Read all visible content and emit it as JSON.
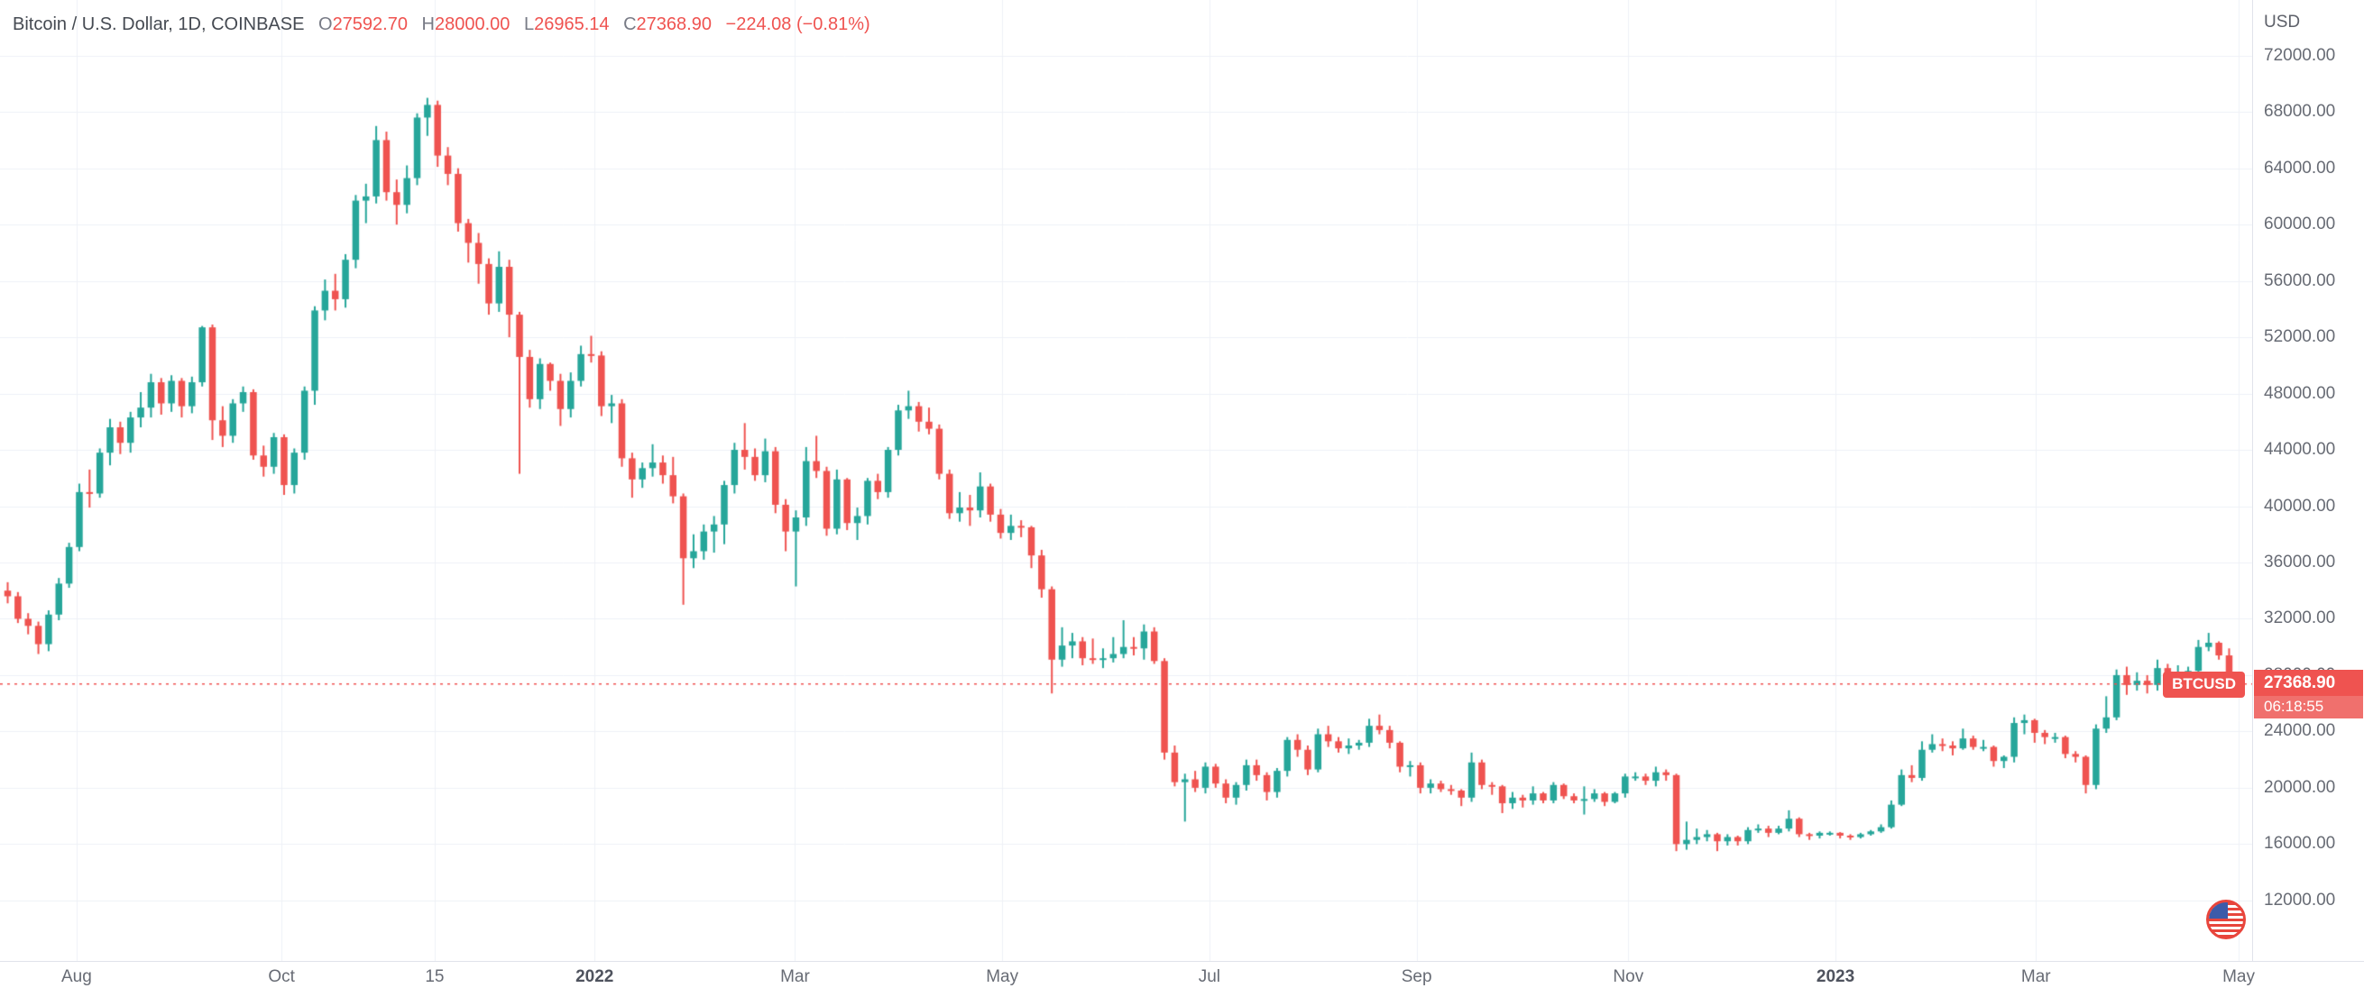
{
  "header": {
    "symbol_title": "Bitcoin / U.S. Dollar, 1D, COINBASE",
    "ohlc": {
      "o_label": "O",
      "o_value": "27592.70",
      "h_label": "H",
      "h_value": "28000.00",
      "l_label": "L",
      "l_value": "26965.14",
      "c_label": "C",
      "c_value": "27368.90",
      "change": "−224.08 (−0.81%)"
    }
  },
  "price_axis": {
    "title": "USD",
    "price_tag": {
      "price": "27368.90",
      "countdown": "06:18:55"
    }
  },
  "plot": {
    "symbol_pill": "BTCUSD"
  },
  "icons": {
    "bottom_right_event": "us-flag-icon"
  },
  "colors": {
    "up": "#26a69a",
    "down": "#ef5350",
    "accent": "#ef5350",
    "grid": "#eef1f7",
    "axis_text": "#676b74"
  },
  "chart_data": {
    "type": "candlestick",
    "title": "Bitcoin / U.S. Dollar, 1D, COINBASE",
    "symbol": "BTCUSD",
    "exchange": "COINBASE",
    "interval": "1D",
    "currency": "USD",
    "last": {
      "open": 27592.7,
      "high": 28000.0,
      "low": 26965.14,
      "close": 27368.9,
      "change": -224.08,
      "change_pct": -0.81
    },
    "y_axis": {
      "price_at_top": 75950,
      "price_at_bottom": 7700,
      "ticks": [
        72000,
        68000,
        64000,
        60000,
        56000,
        52000,
        48000,
        44000,
        40000,
        36000,
        32000,
        28000,
        24000,
        20000,
        16000,
        12000
      ]
    },
    "x_ticks": [
      {
        "label": "Aug",
        "pos": 0.034
      },
      {
        "label": "Oct",
        "pos": 0.125
      },
      {
        "label": "15",
        "pos": 0.193
      },
      {
        "label": "2022",
        "pos": 0.264,
        "year": true
      },
      {
        "label": "Mar",
        "pos": 0.353
      },
      {
        "label": "May",
        "pos": 0.445
      },
      {
        "label": "Jul",
        "pos": 0.537
      },
      {
        "label": "Sep",
        "pos": 0.629
      },
      {
        "label": "Nov",
        "pos": 0.723
      },
      {
        "label": "2023",
        "pos": 0.815,
        "year": true
      },
      {
        "label": "Mar",
        "pos": 0.904
      },
      {
        "label": "May",
        "pos": 0.994
      }
    ],
    "x_range": {
      "start": "Jul 2021",
      "end": "May 2023"
    },
    "candles": [
      [
        34000,
        34600,
        33100,
        33600
      ],
      [
        33600,
        33900,
        31700,
        32000
      ],
      [
        32000,
        32400,
        30900,
        31500
      ],
      [
        31500,
        31800,
        29500,
        30200
      ],
      [
        30200,
        32600,
        29700,
        32300
      ],
      [
        32300,
        34900,
        31900,
        34500
      ],
      [
        34500,
        37400,
        34200,
        37100
      ],
      [
        37100,
        41600,
        36800,
        41000
      ],
      [
        41000,
        42600,
        39900,
        40900
      ],
      [
        40900,
        44100,
        40600,
        43800
      ],
      [
        43800,
        46200,
        42900,
        45600
      ],
      [
        45600,
        46000,
        43700,
        44500
      ],
      [
        44500,
        46700,
        43800,
        46300
      ],
      [
        46300,
        48100,
        45600,
        47000
      ],
      [
        47000,
        49400,
        46300,
        48800
      ],
      [
        48800,
        49100,
        46500,
        47300
      ],
      [
        47300,
        49300,
        46700,
        48900
      ],
      [
        48900,
        49100,
        46300,
        47100
      ],
      [
        47100,
        49200,
        46600,
        48800
      ],
      [
        48800,
        52800,
        48500,
        52700
      ],
      [
        52700,
        52900,
        44700,
        46100
      ],
      [
        46100,
        47100,
        44200,
        45000
      ],
      [
        45000,
        47600,
        44500,
        47300
      ],
      [
        47300,
        48500,
        46700,
        48100
      ],
      [
        48100,
        48300,
        43300,
        43600
      ],
      [
        43600,
        44300,
        42100,
        42800
      ],
      [
        42800,
        45200,
        42300,
        44900
      ],
      [
        44900,
        45100,
        40800,
        41500
      ],
      [
        41500,
        44100,
        40900,
        43800
      ],
      [
        43800,
        48500,
        43300,
        48200
      ],
      [
        48200,
        54200,
        47200,
        53900
      ],
      [
        53900,
        56100,
        53200,
        55300
      ],
      [
        55300,
        56500,
        53900,
        54700
      ],
      [
        54700,
        57900,
        54100,
        57500
      ],
      [
        57500,
        62100,
        56900,
        61700
      ],
      [
        61700,
        62900,
        60100,
        62000
      ],
      [
        62000,
        67000,
        61500,
        66000
      ],
      [
        66000,
        66600,
        61700,
        62300
      ],
      [
        62300,
        63200,
        60000,
        61400
      ],
      [
        61400,
        64200,
        60800,
        63300
      ],
      [
        63300,
        67900,
        62800,
        67600
      ],
      [
        67600,
        69000,
        66300,
        68500
      ],
      [
        68500,
        68800,
        64100,
        64900
      ],
      [
        64900,
        65500,
        62800,
        63600
      ],
      [
        63600,
        64000,
        59500,
        60100
      ],
      [
        60100,
        60400,
        57300,
        58700
      ],
      [
        58700,
        59400,
        55800,
        57200
      ],
      [
        57200,
        57600,
        53600,
        54400
      ],
      [
        54400,
        58100,
        53800,
        57000
      ],
      [
        57000,
        57500,
        52000,
        53600
      ],
      [
        53600,
        53800,
        42300,
        50600
      ],
      [
        50600,
        51100,
        47000,
        47600
      ],
      [
        47600,
        50500,
        46900,
        50100
      ],
      [
        50100,
        50200,
        48200,
        48900
      ],
      [
        48900,
        49400,
        45700,
        46900
      ],
      [
        46900,
        49500,
        46300,
        48900
      ],
      [
        48900,
        51400,
        48500,
        50800
      ],
      [
        50800,
        52100,
        50200,
        50700
      ],
      [
        50700,
        51000,
        46400,
        47100
      ],
      [
        47100,
        47900,
        45900,
        47300
      ],
      [
        47300,
        47600,
        42800,
        43400
      ],
      [
        43400,
        43800,
        40600,
        41900
      ],
      [
        41900,
        43100,
        41300,
        42700
      ],
      [
        42700,
        44400,
        42100,
        43100
      ],
      [
        43100,
        43600,
        41600,
        42200
      ],
      [
        42200,
        43500,
        40200,
        40700
      ],
      [
        40700,
        40900,
        33000,
        36300
      ],
      [
        36300,
        38000,
        35600,
        36800
      ],
      [
        36800,
        38700,
        36200,
        38200
      ],
      [
        38200,
        39300,
        36700,
        38700
      ],
      [
        38700,
        41800,
        37300,
        41500
      ],
      [
        41500,
        44500,
        40900,
        44000
      ],
      [
        44000,
        45900,
        42600,
        43500
      ],
      [
        43500,
        44100,
        41800,
        42200
      ],
      [
        42200,
        44800,
        41700,
        43900
      ],
      [
        43900,
        44200,
        39500,
        40100
      ],
      [
        40100,
        40500,
        36800,
        38200
      ],
      [
        38200,
        39700,
        34300,
        39200
      ],
      [
        39200,
        44200,
        38600,
        43200
      ],
      [
        43200,
        45000,
        42000,
        42500
      ],
      [
        42500,
        42800,
        37900,
        38400
      ],
      [
        38400,
        42600,
        38000,
        41900
      ],
      [
        41900,
        42000,
        38300,
        38800
      ],
      [
        38800,
        39900,
        37600,
        39300
      ],
      [
        39300,
        42000,
        38700,
        41800
      ],
      [
        41800,
        42300,
        40500,
        41000
      ],
      [
        41000,
        44200,
        40600,
        44000
      ],
      [
        44000,
        47200,
        43600,
        46800
      ],
      [
        46800,
        48200,
        46200,
        47100
      ],
      [
        47100,
        47400,
        45300,
        46000
      ],
      [
        46000,
        47000,
        45100,
        45500
      ],
      [
        45500,
        45800,
        41900,
        42300
      ],
      [
        42300,
        42600,
        39100,
        39500
      ],
      [
        39500,
        41000,
        38900,
        39900
      ],
      [
        39900,
        40800,
        38600,
        39700
      ],
      [
        39700,
        42400,
        39200,
        41400
      ],
      [
        41400,
        41600,
        38900,
        39400
      ],
      [
        39400,
        39800,
        37700,
        38100
      ],
      [
        38100,
        39400,
        37600,
        38600
      ],
      [
        38600,
        39000,
        37800,
        38500
      ],
      [
        38500,
        38600,
        35600,
        36500
      ],
      [
        36500,
        36900,
        33500,
        34100
      ],
      [
        34100,
        34300,
        26700,
        29100
      ],
      [
        29100,
        31400,
        28600,
        30100
      ],
      [
        30100,
        31000,
        29200,
        30400
      ],
      [
        30400,
        30700,
        28700,
        29200
      ],
      [
        29200,
        30600,
        28800,
        29100
      ],
      [
        29100,
        29900,
        28500,
        29200
      ],
      [
        29200,
        30700,
        28900,
        29500
      ],
      [
        29500,
        31900,
        29200,
        30000
      ],
      [
        30000,
        30700,
        29400,
        29900
      ],
      [
        29900,
        31600,
        29100,
        31100
      ],
      [
        31100,
        31400,
        28800,
        29000
      ],
      [
        29000,
        29200,
        22000,
        22500
      ],
      [
        22500,
        23000,
        20100,
        20400
      ],
      [
        20400,
        21000,
        17600,
        20600
      ],
      [
        20600,
        21200,
        19700,
        20000
      ],
      [
        20000,
        21800,
        19600,
        21500
      ],
      [
        21500,
        21700,
        20000,
        20300
      ],
      [
        20300,
        20600,
        18900,
        19300
      ],
      [
        19300,
        20400,
        18800,
        20200
      ],
      [
        20200,
        22000,
        19800,
        21600
      ],
      [
        21600,
        22000,
        20500,
        20900
      ],
      [
        20900,
        21100,
        19100,
        19700
      ],
      [
        19700,
        21400,
        19300,
        21200
      ],
      [
        21200,
        23600,
        20800,
        23400
      ],
      [
        23400,
        23800,
        22200,
        22700
      ],
      [
        22700,
        23000,
        20900,
        21300
      ],
      [
        21300,
        24200,
        21100,
        23800
      ],
      [
        23800,
        24400,
        22900,
        23300
      ],
      [
        23300,
        23600,
        22500,
        22800
      ],
      [
        22800,
        23500,
        22400,
        23000
      ],
      [
        23000,
        23400,
        22700,
        23200
      ],
      [
        23200,
        24900,
        22900,
        24400
      ],
      [
        24400,
        25200,
        23800,
        24100
      ],
      [
        24100,
        24400,
        22800,
        23200
      ],
      [
        23200,
        23300,
        21100,
        21500
      ],
      [
        21500,
        21900,
        20800,
        21600
      ],
      [
        21600,
        21800,
        19600,
        20000
      ],
      [
        20000,
        20600,
        19600,
        20300
      ],
      [
        20300,
        20500,
        19700,
        19900
      ],
      [
        19900,
        20200,
        19500,
        19800
      ],
      [
        19800,
        19900,
        18700,
        19300
      ],
      [
        19300,
        22500,
        19000,
        21800
      ],
      [
        21800,
        22000,
        19900,
        20200
      ],
      [
        20200,
        20400,
        19500,
        20100
      ],
      [
        20100,
        20200,
        18200,
        18900
      ],
      [
        18900,
        19700,
        18500,
        19300
      ],
      [
        19300,
        19500,
        18600,
        19100
      ],
      [
        19100,
        20100,
        18800,
        19600
      ],
      [
        19600,
        19700,
        18900,
        19100
      ],
      [
        19100,
        20400,
        18900,
        20200
      ],
      [
        20200,
        20300,
        19200,
        19400
      ],
      [
        19400,
        19600,
        18900,
        19100
      ],
      [
        19100,
        20100,
        18100,
        19200
      ],
      [
        19200,
        19900,
        19000,
        19600
      ],
      [
        19600,
        19700,
        18700,
        19000
      ],
      [
        19000,
        19700,
        18900,
        19600
      ],
      [
        19600,
        21000,
        19300,
        20800
      ],
      [
        20800,
        21100,
        20500,
        20800
      ],
      [
        20800,
        21000,
        20200,
        20500
      ],
      [
        20500,
        21500,
        20100,
        21100
      ],
      [
        21100,
        21300,
        20500,
        20900
      ],
      [
        20900,
        21000,
        15500,
        16000
      ],
      [
        16000,
        17600,
        15600,
        16300
      ],
      [
        16300,
        17100,
        16000,
        16500
      ],
      [
        16500,
        17000,
        16200,
        16700
      ],
      [
        16700,
        16800,
        15500,
        16200
      ],
      [
        16200,
        16700,
        15900,
        16500
      ],
      [
        16500,
        16600,
        15900,
        16200
      ],
      [
        16200,
        17200,
        16000,
        17000
      ],
      [
        17000,
        17400,
        16800,
        17100
      ],
      [
        17100,
        17300,
        16500,
        16800
      ],
      [
        16800,
        17300,
        16700,
        17100
      ],
      [
        17100,
        18400,
        16900,
        17800
      ],
      [
        17800,
        17900,
        16500,
        16700
      ],
      [
        16700,
        16800,
        16300,
        16600
      ],
      [
        16600,
        16900,
        16400,
        16800
      ],
      [
        16800,
        16900,
        16600,
        16800
      ],
      [
        16800,
        16850,
        16400,
        16600
      ],
      [
        16600,
        16700,
        16300,
        16500
      ],
      [
        16500,
        16800,
        16400,
        16700
      ],
      [
        16700,
        17000,
        16600,
        16900
      ],
      [
        16900,
        17400,
        16800,
        17200
      ],
      [
        17200,
        19100,
        17100,
        18800
      ],
      [
        18800,
        21300,
        18700,
        20900
      ],
      [
        20900,
        21600,
        20400,
        20700
      ],
      [
        20700,
        23300,
        20500,
        22700
      ],
      [
        22700,
        23800,
        22500,
        23100
      ],
      [
        23100,
        23500,
        22600,
        23000
      ],
      [
        23000,
        23300,
        22300,
        22800
      ],
      [
        22800,
        24200,
        22700,
        23500
      ],
      [
        23500,
        23700,
        22700,
        22900
      ],
      [
        22900,
        23400,
        22600,
        22900
      ],
      [
        22900,
        23000,
        21500,
        21900
      ],
      [
        21900,
        22300,
        21400,
        22200
      ],
      [
        22200,
        25000,
        21800,
        24600
      ],
      [
        24600,
        25200,
        23800,
        24800
      ],
      [
        24800,
        24900,
        23200,
        23900
      ],
      [
        23900,
        24100,
        23100,
        23600
      ],
      [
        23600,
        23900,
        23200,
        23600
      ],
      [
        23600,
        23700,
        22100,
        22400
      ],
      [
        22400,
        22600,
        21800,
        22200
      ],
      [
        22200,
        22300,
        19600,
        20200
      ],
      [
        20200,
        24500,
        19900,
        24200
      ],
      [
        24200,
        26500,
        23900,
        25000
      ],
      [
        25000,
        28400,
        24800,
        28000
      ],
      [
        28000,
        28600,
        26600,
        27300
      ],
      [
        27300,
        28200,
        26900,
        27600
      ],
      [
        27600,
        28000,
        26700,
        27300
      ],
      [
        27300,
        29100,
        26900,
        28500
      ],
      [
        28500,
        28800,
        27200,
        27800
      ],
      [
        27800,
        28700,
        27400,
        28000
      ],
      [
        28000,
        28600,
        27700,
        28300
      ],
      [
        28300,
        30500,
        27900,
        30000
      ],
      [
        30000,
        31000,
        29700,
        30300
      ],
      [
        30300,
        30400,
        29100,
        29400
      ],
      [
        29400,
        29900,
        27200,
        27600
      ],
      [
        27592.7,
        28000,
        26965.14,
        27368.9
      ]
    ]
  }
}
